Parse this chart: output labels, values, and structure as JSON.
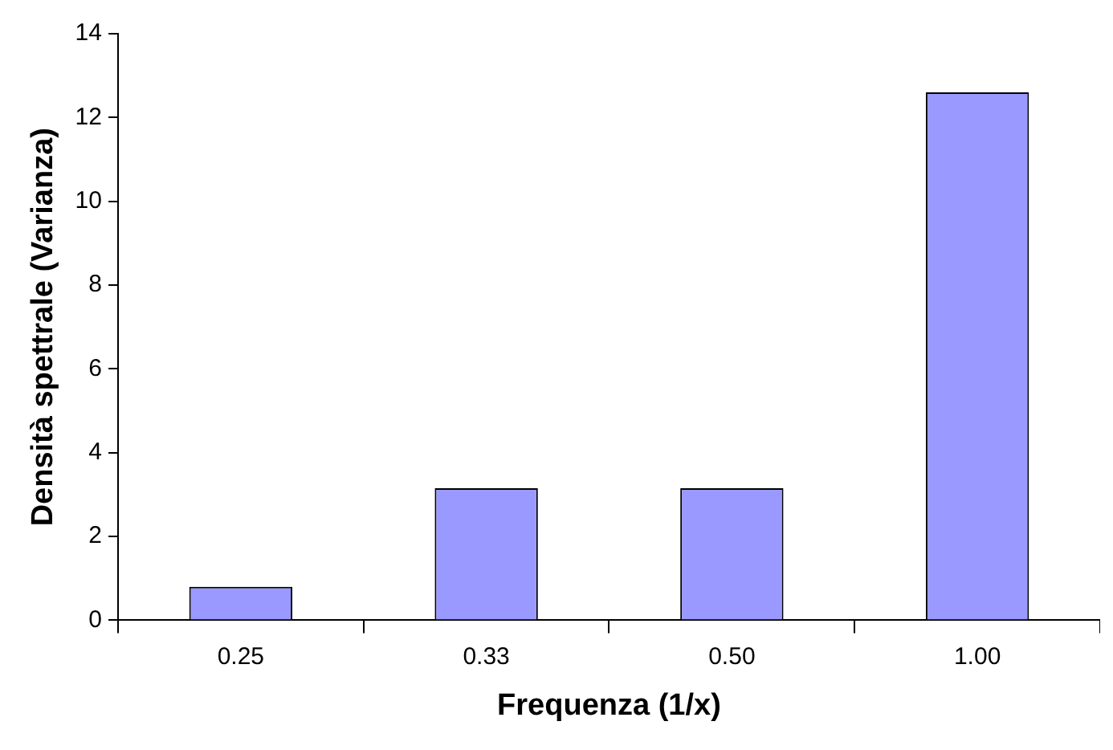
{
  "chart_data": {
    "type": "bar",
    "xlabel": "Frequenza (1/x)",
    "ylabel": "Densità spettrale (Varianza)",
    "categories": [
      "0.25",
      "0.33",
      "0.50",
      "1.00"
    ],
    "values": [
      0.8,
      3.15,
      3.15,
      12.6
    ],
    "color": "#9999ff",
    "ylim": [
      0,
      14
    ],
    "yticks": [
      0,
      2,
      4,
      6,
      8,
      10,
      12,
      14
    ],
    "grid": false,
    "legend": false
  }
}
